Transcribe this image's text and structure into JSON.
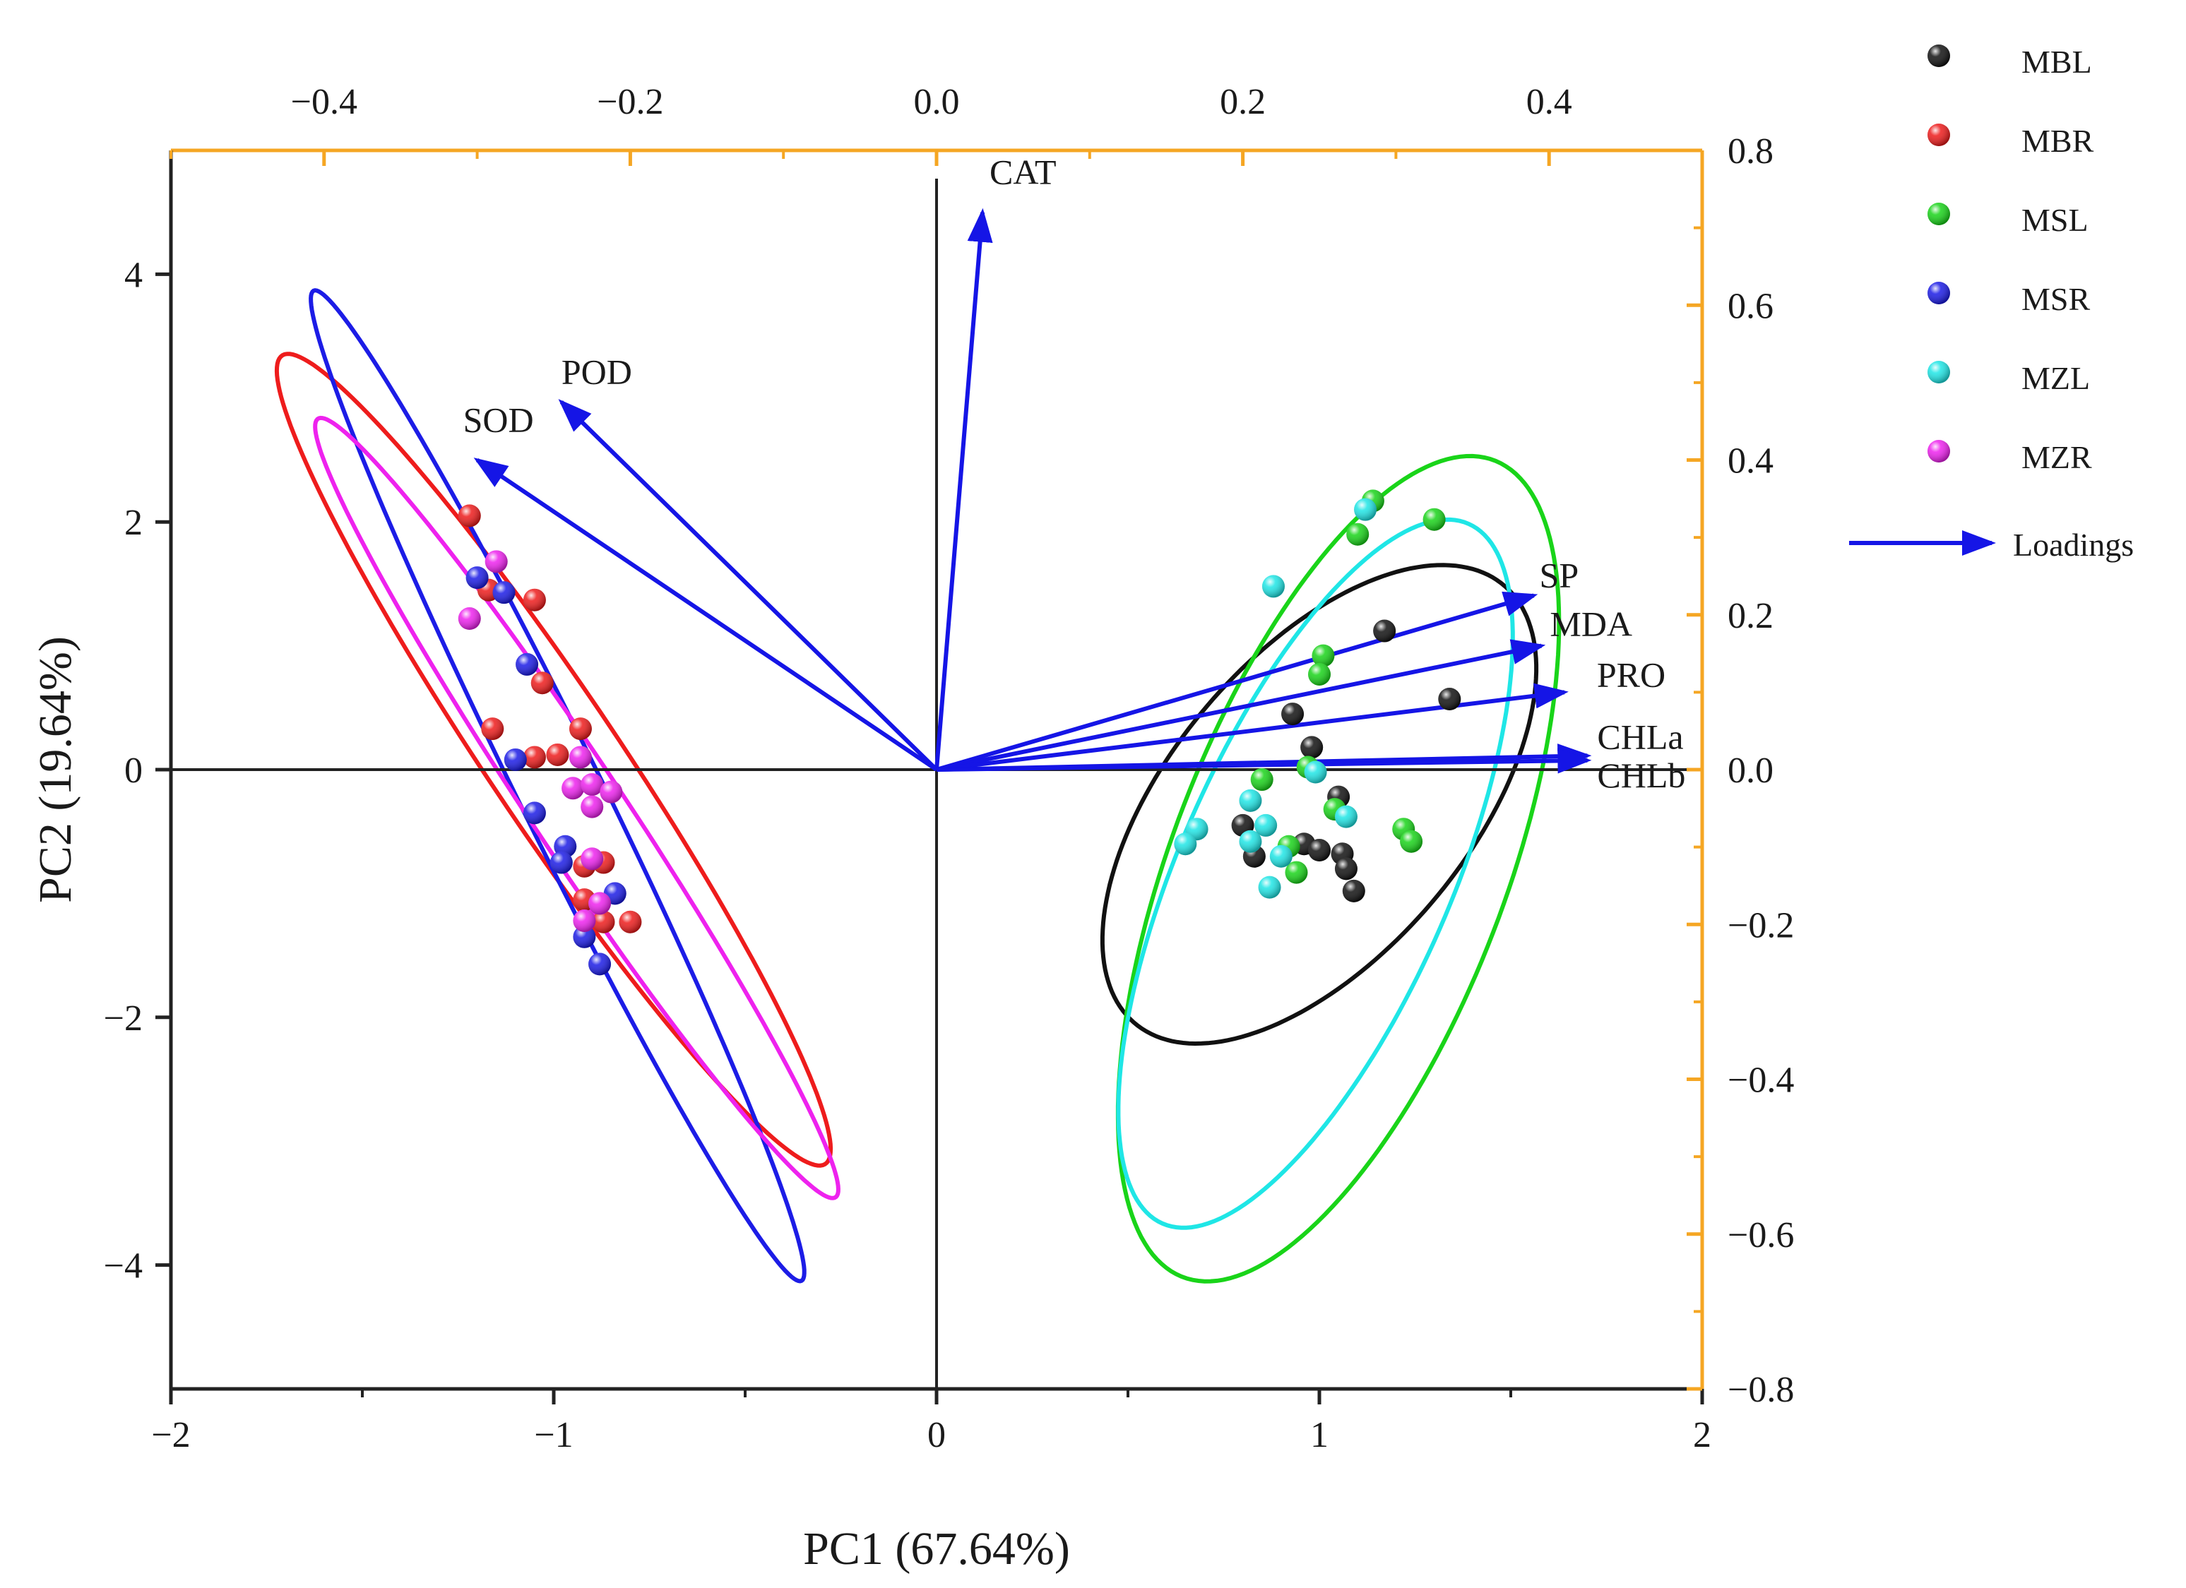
{
  "chart_data": {
    "type": "scatter",
    "title": "",
    "xlabel": "PC1 (67.64%)",
    "ylabel": "PC2 (19.64%)",
    "xlim": [
      -2,
      2
    ],
    "ylim": [
      -5,
      5
    ],
    "x_ticks": [
      "−2",
      "−1",
      "0",
      "1",
      "2"
    ],
    "y_ticks": [
      "−4",
      "−2",
      "0",
      "2",
      "4"
    ],
    "top_axis": {
      "range": [
        -0.5,
        0.5
      ],
      "ticks": [
        "−0.4",
        "−0.2",
        "0.0",
        "0.2",
        "0.4"
      ],
      "color": "#f5a623"
    },
    "right_axis": {
      "range": [
        -0.8,
        0.8
      ],
      "ticks": [
        "−0.8",
        "−0.6",
        "−0.4",
        "−0.2",
        "0.0",
        "0.2",
        "0.4",
        "0.6",
        "0.8"
      ],
      "color": "#f5a623"
    },
    "legend_position": "outside-top-right",
    "series": [
      {
        "name": "MBL",
        "color": "#111111",
        "points": [
          [
            1.17,
            1.12
          ],
          [
            1.34,
            0.57
          ],
          [
            0.93,
            0.45
          ],
          [
            0.98,
            0.18
          ],
          [
            1.05,
            -0.22
          ],
          [
            0.8,
            -0.45
          ],
          [
            0.83,
            -0.7
          ],
          [
            0.96,
            -0.6
          ],
          [
            1.0,
            -0.65
          ],
          [
            1.06,
            -0.68
          ],
          [
            1.07,
            -0.8
          ],
          [
            1.09,
            -0.98
          ]
        ]
      },
      {
        "name": "MBR",
        "color": "#ee1c1c",
        "points": [
          [
            -1.22,
            2.05
          ],
          [
            -1.17,
            1.45
          ],
          [
            -1.05,
            1.37
          ],
          [
            -1.03,
            0.7
          ],
          [
            -1.16,
            0.33
          ],
          [
            -1.05,
            0.1
          ],
          [
            -0.99,
            0.12
          ],
          [
            -0.93,
            0.33
          ],
          [
            -0.92,
            -0.78
          ],
          [
            -0.87,
            -0.75
          ],
          [
            -0.92,
            -1.05
          ],
          [
            -0.87,
            -1.23
          ],
          [
            -0.8,
            -1.23
          ]
        ]
      },
      {
        "name": "MSL",
        "color": "#19d419",
        "points": [
          [
            1.14,
            2.17
          ],
          [
            1.3,
            2.02
          ],
          [
            1.1,
            1.9
          ],
          [
            1.01,
            0.92
          ],
          [
            1.0,
            0.77
          ],
          [
            0.85,
            -0.08
          ],
          [
            0.97,
            0.02
          ],
          [
            1.04,
            -0.32
          ],
          [
            1.22,
            -0.48
          ],
          [
            1.24,
            -0.58
          ],
          [
            0.92,
            -0.62
          ],
          [
            0.94,
            -0.83
          ]
        ]
      },
      {
        "name": "MSR",
        "color": "#1c1ce6",
        "points": [
          [
            -1.2,
            1.55
          ],
          [
            -1.13,
            1.43
          ],
          [
            -1.07,
            0.85
          ],
          [
            -1.1,
            0.08
          ],
          [
            -1.05,
            -0.35
          ],
          [
            -0.97,
            -0.62
          ],
          [
            -0.98,
            -0.75
          ],
          [
            -0.92,
            -1.35
          ],
          [
            -0.88,
            -1.57
          ],
          [
            -0.84,
            -1.0
          ]
        ]
      },
      {
        "name": "MZL",
        "color": "#1fe6e6",
        "points": [
          [
            1.12,
            2.1
          ],
          [
            0.88,
            1.48
          ],
          [
            0.82,
            -0.25
          ],
          [
            0.68,
            -0.48
          ],
          [
            0.65,
            -0.6
          ],
          [
            0.82,
            -0.58
          ],
          [
            0.86,
            -0.45
          ],
          [
            0.99,
            -0.02
          ],
          [
            1.07,
            -0.38
          ],
          [
            0.87,
            -0.95
          ],
          [
            0.9,
            -0.7
          ]
        ]
      },
      {
        "name": "MZR",
        "color": "#ee22ee",
        "points": [
          [
            -1.15,
            1.68
          ],
          [
            -1.22,
            1.22
          ],
          [
            -0.93,
            0.1
          ],
          [
            -0.95,
            -0.15
          ],
          [
            -0.9,
            -0.12
          ],
          [
            -0.85,
            -0.18
          ],
          [
            -0.9,
            -0.3
          ],
          [
            -0.9,
            -0.72
          ],
          [
            -0.88,
            -1.08
          ],
          [
            -0.92,
            -1.22
          ]
        ]
      }
    ],
    "ellipses": [
      {
        "series": "MBL",
        "center": [
          1.0,
          -0.28
        ],
        "semi_axes": [
          0.46,
          1.96
        ],
        "tilt_deg": 10
      },
      {
        "series": "MBR",
        "center": [
          -1.0,
          0.08
        ],
        "semi_axes": [
          0.2,
          3.35
        ],
        "tilt_deg": -12
      },
      {
        "series": "MSL",
        "center": [
          1.05,
          -0.8
        ],
        "semi_axes": [
          0.46,
          3.35
        ],
        "tilt_deg": 6
      },
      {
        "series": "MSR",
        "center": [
          -0.99,
          -0.13
        ],
        "semi_axes": [
          0.12,
          4.05
        ],
        "tilt_deg": -9
      },
      {
        "series": "MZL",
        "center": [
          0.99,
          -0.84
        ],
        "semi_axes": [
          0.38,
          2.88
        ],
        "tilt_deg": 7
      },
      {
        "series": "MZR",
        "center": [
          -0.94,
          -0.31
        ],
        "semi_axes": [
          0.14,
          3.22
        ],
        "tilt_deg": -12
      }
    ],
    "loadings": {
      "name": "Loadings",
      "color": "#1515e6",
      "arrows": [
        {
          "label": "CAT",
          "x": 0.03,
          "y": 0.72
        },
        {
          "label": "POD",
          "x": -0.245,
          "y": 0.475
        },
        {
          "label": "SOD",
          "x": -0.3,
          "y": 0.4
        },
        {
          "label": "SP",
          "x": 0.39,
          "y": 0.225
        },
        {
          "label": "MDA",
          "x": 0.395,
          "y": 0.16
        },
        {
          "label": "PRO",
          "x": 0.41,
          "y": 0.1
        },
        {
          "label": "CHLa",
          "x": 0.425,
          "y": 0.018
        },
        {
          "label": "CHLb",
          "x": 0.425,
          "y": 0.012
        }
      ]
    },
    "reference_lines": {
      "x0": true,
      "y0": true
    },
    "grid": false
  }
}
